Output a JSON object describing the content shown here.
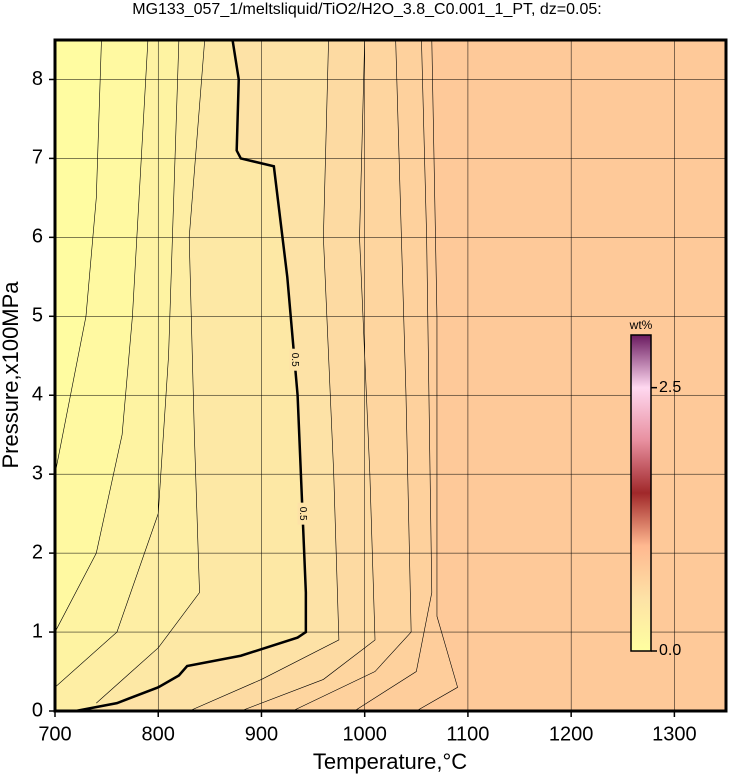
{
  "chart_data": {
    "type": "contour",
    "title": "MG133_057_1/meltsliquid/TiO2/H2O_3.8_C0.001_1_PT, dz=0.05:",
    "x_label": "Temperature,°C",
    "y_label": "Pressure,x100MPa",
    "xlim": [
      700,
      1350
    ],
    "ylim": [
      0,
      8.5
    ],
    "xticks": [
      700,
      800,
      900,
      1000,
      1100,
      1200,
      1300
    ],
    "yticks": [
      0,
      1,
      2,
      3,
      4,
      5,
      6,
      7,
      8
    ],
    "grid": true,
    "colorbar": {
      "label": "wt%",
      "clim": [
        0,
        3
      ],
      "ticks": [
        {
          "value": 0,
          "label": "0.0"
        },
        {
          "value": 2.5,
          "label": "2.5"
        }
      ],
      "colormap": [
        "#ffffa0",
        "#fde2a6",
        "#ffb890",
        "#a0282a",
        "#e890a0",
        "#ffd8f0",
        "#6a1a60"
      ]
    },
    "contours": [
      {
        "level": 0.1,
        "x": [
          700,
          715,
          730,
          740,
          745
        ],
        "y": [
          3.0,
          4.0,
          5.0,
          6.5,
          8.5
        ]
      },
      {
        "level": 0.2,
        "x": [
          700,
          740,
          765,
          775,
          790
        ],
        "y": [
          1.0,
          2.0,
          3.5,
          5.0,
          8.5
        ]
      },
      {
        "level": 0.3,
        "x": [
          700,
          760,
          800,
          810,
          820
        ],
        "y": [
          0.3,
          1.0,
          2.5,
          4.5,
          8.5
        ]
      },
      {
        "level": 0.4,
        "x": [
          740,
          800,
          840,
          835,
          830,
          845
        ],
        "y": [
          0.1,
          0.8,
          1.5,
          3.5,
          6.0,
          8.5
        ]
      },
      {
        "level": 0.5,
        "labeled": true,
        "x": [
          720,
          760,
          800,
          820,
          828,
          880,
          935,
          943,
          943,
          935,
          925,
          912,
          880,
          876,
          878,
          872
        ],
        "y": [
          0,
          0.1,
          0.3,
          0.45,
          0.57,
          0.7,
          0.93,
          1.0,
          1.5,
          4.0,
          5.5,
          6.9,
          7.0,
          7.1,
          8.0,
          8.5
        ]
      },
      {
        "level": 0.6,
        "x": [
          830,
          900,
          975,
          970,
          960,
          965
        ],
        "y": [
          0,
          0.4,
          0.9,
          3.0,
          6.0,
          8.5
        ]
      },
      {
        "level": 0.65,
        "x": [
          880,
          960,
          1010,
          1005,
          995,
          1000
        ],
        "y": [
          0,
          0.4,
          0.9,
          3.0,
          6.0,
          8.5
        ]
      },
      {
        "level": 0.7,
        "x": [
          930,
          1010,
          1045,
          1040,
          1030
        ],
        "y": [
          0,
          0.5,
          1.0,
          4.0,
          8.5
        ]
      },
      {
        "level": 0.75,
        "x": [
          990,
          1050,
          1065,
          1060,
          1055
        ],
        "y": [
          0,
          0.5,
          1.5,
          6.0,
          8.5
        ]
      },
      {
        "level": 0.8,
        "x": [
          1050,
          1090,
          1070,
          1070,
          1065
        ],
        "y": [
          0,
          0.3,
          1.2,
          5.0,
          8.5
        ]
      }
    ]
  }
}
